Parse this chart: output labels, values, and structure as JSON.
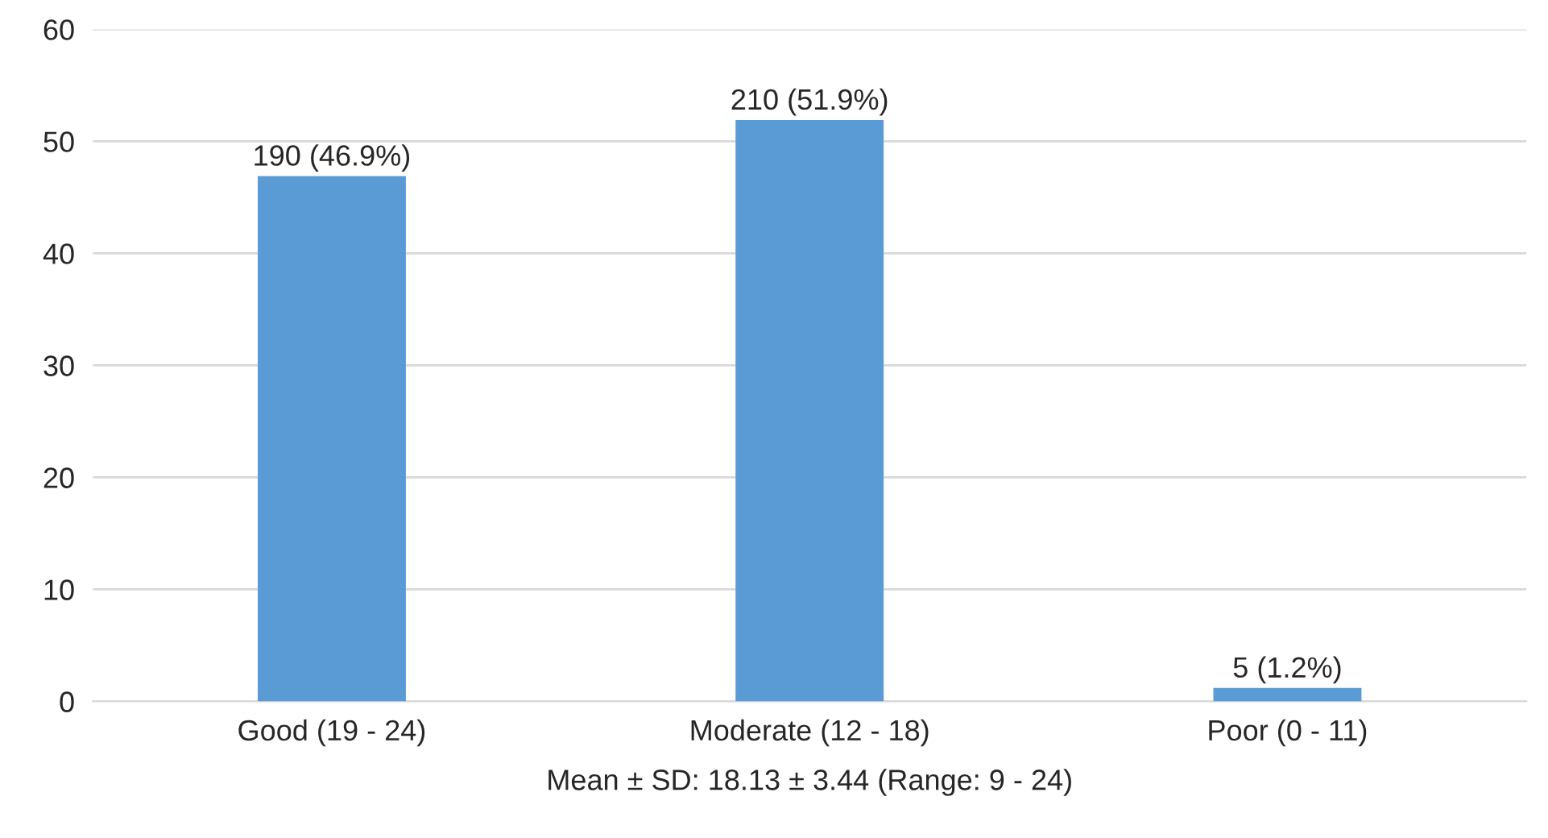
{
  "chart_data": {
    "type": "bar",
    "xlabel": "Mean ± SD: 18.13 ± 3.44 (Range: 9 - 24)",
    "categories": [
      "Good (19 - 24)",
      "Moderate (12 - 18)",
      "Poor (0 - 11)"
    ],
    "values": [
      46.9,
      51.9,
      1.2
    ],
    "value_labels": [
      "190 (46.9%)",
      "210 (51.9%)",
      "5 (1.2%)"
    ],
    "color": "#5b9bd5",
    "ylim": [
      0,
      60
    ],
    "yticks": [
      0,
      10,
      20,
      30,
      40,
      50,
      60
    ],
    "grid": "y"
  }
}
